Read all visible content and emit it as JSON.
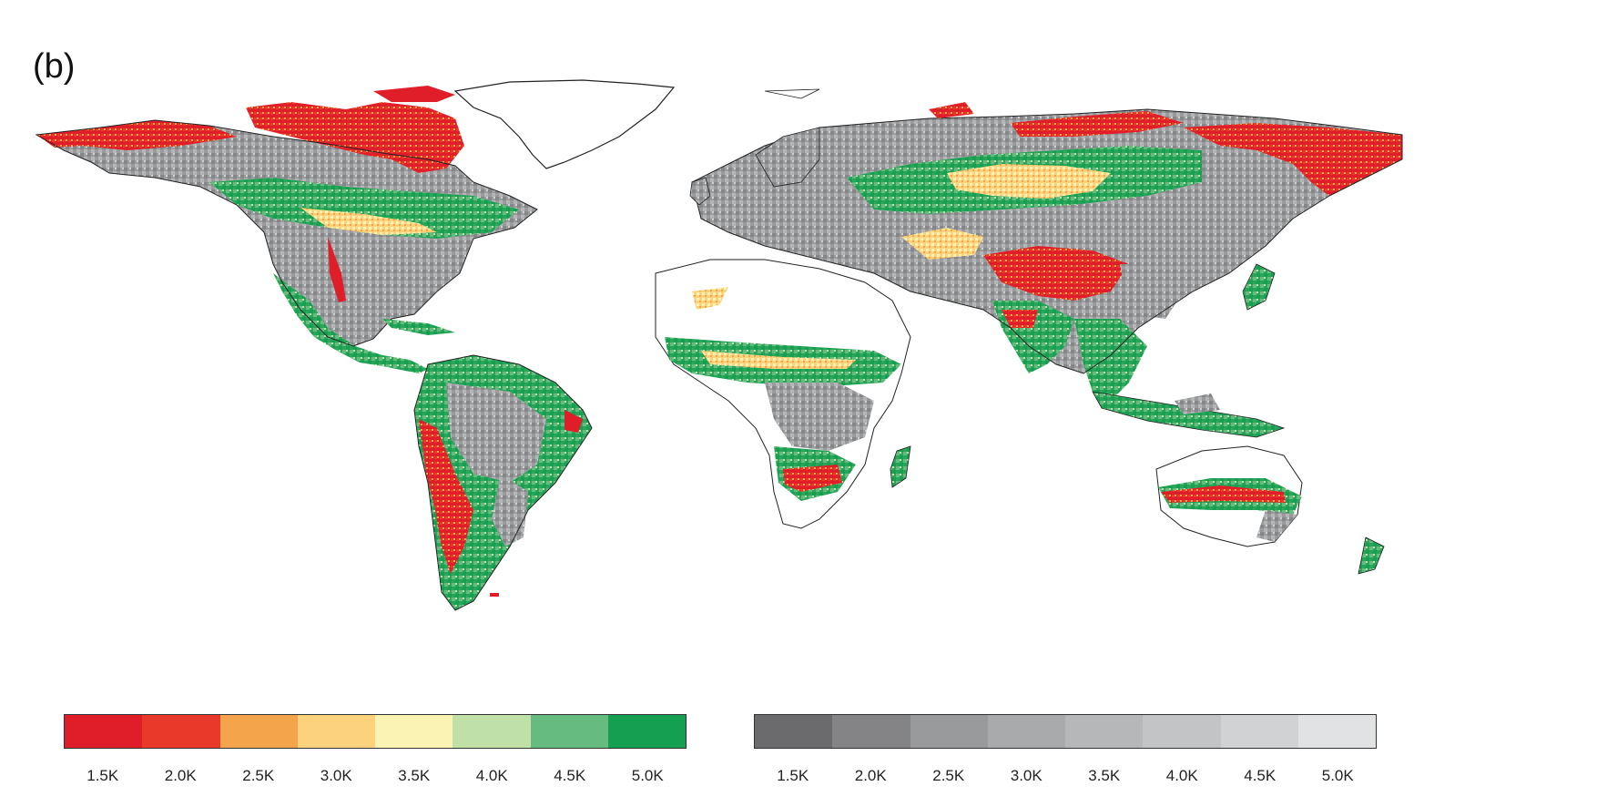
{
  "panel_label": "(b)",
  "legend_left": {
    "colors": [
      "#e01e2a",
      "#e8392a",
      "#f4a54c",
      "#fcd27c",
      "#fbf3b4",
      "#bfe0a6",
      "#66bb80",
      "#14a050"
    ],
    "ticks": [
      "1.5K",
      "2.0K",
      "2.5K",
      "3.0K",
      "3.5K",
      "4.0K",
      "4.5K",
      "5.0K"
    ]
  },
  "legend_right": {
    "colors": [
      "#6b6b6d",
      "#848486",
      "#999a9c",
      "#a9aaac",
      "#b6b7b9",
      "#c3c4c6",
      "#d1d2d4",
      "#e1e2e4"
    ],
    "ticks": [
      "1.5K",
      "2.0K",
      "2.5K",
      "3.0K",
      "3.5K",
      "4.0K",
      "4.5K",
      "5.0K"
    ]
  }
}
